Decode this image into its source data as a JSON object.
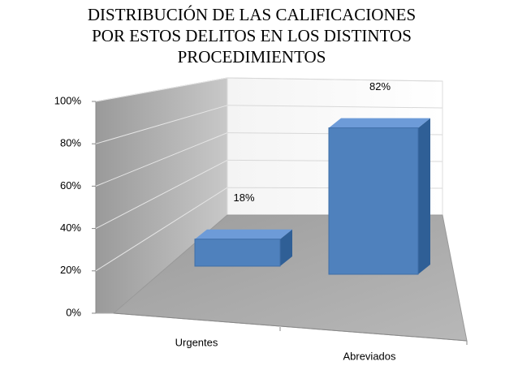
{
  "chart_data": {
    "type": "bar3d",
    "title": [
      "DISTRIBUCIÓN DE LAS CALIFICACIONES",
      "POR ESTOS DELITOS EN  LOS DISTINTOS",
      "PROCEDIMIENTOS"
    ],
    "categories": [
      "Urgentes",
      "Abreviados"
    ],
    "values": [
      18,
      82
    ],
    "value_labels": [
      "18%",
      "82%"
    ],
    "color": "#4f81bd",
    "ylim": [
      0,
      100
    ],
    "yticks": [
      {
        "value": 0,
        "label": "0%"
      },
      {
        "value": 20,
        "label": "20%"
      },
      {
        "value": 40,
        "label": "40%"
      },
      {
        "value": 60,
        "label": "60%"
      },
      {
        "value": 80,
        "label": "80%"
      },
      {
        "value": 100,
        "label": "100%"
      }
    ],
    "grid": true
  }
}
